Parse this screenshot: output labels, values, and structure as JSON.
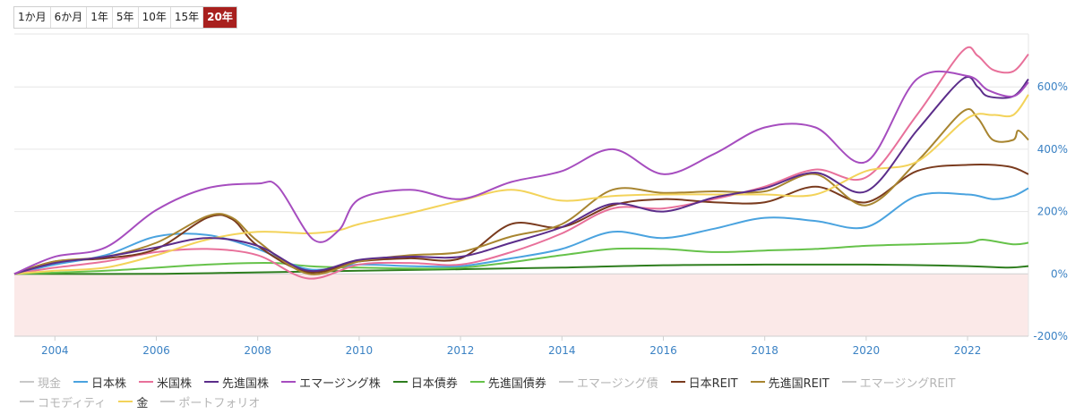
{
  "range_tabs": [
    {
      "label": "1か月",
      "active": false
    },
    {
      "label": "6か月",
      "active": false
    },
    {
      "label": "1年",
      "active": false
    },
    {
      "label": "5年",
      "active": false
    },
    {
      "label": "10年",
      "active": false
    },
    {
      "label": "15年",
      "active": false
    },
    {
      "label": "20年",
      "active": true
    }
  ],
  "colors": {
    "tick": "#3b82c4",
    "negative_band": "#fbe9e8",
    "grid": "#e6e6e6",
    "hidden": "#c8c8c8"
  },
  "chart_data": {
    "type": "line",
    "xlim": [
      2003.2,
      2023.2
    ],
    "ylim": [
      -200,
      770
    ],
    "x_ticks": [
      2004,
      2006,
      2008,
      2010,
      2012,
      2014,
      2016,
      2018,
      2020,
      2022
    ],
    "x_tick_labels": [
      "2004",
      "2006",
      "2008",
      "2010",
      "2012",
      "2014",
      "2016",
      "2018",
      "2020",
      "2022"
    ],
    "y_ticks": [
      600,
      400,
      200,
      0,
      -200
    ],
    "y_tick_labels": [
      "600%",
      "400%",
      "200%",
      "0%",
      "-200%"
    ],
    "grid": true,
    "negative_shading": true,
    "legend_position": "bottom",
    "series": [
      {
        "name": "現金",
        "color": "#c8c8c8",
        "visible": false,
        "points": []
      },
      {
        "name": "日本株",
        "color": "#4aa3df",
        "visible": true,
        "points": [
          [
            2003.2,
            0
          ],
          [
            2004,
            30
          ],
          [
            2005,
            60
          ],
          [
            2006,
            120
          ],
          [
            2007,
            125
          ],
          [
            2008,
            80
          ],
          [
            2009,
            15
          ],
          [
            2010,
            30
          ],
          [
            2011,
            25
          ],
          [
            2012,
            25
          ],
          [
            2013,
            50
          ],
          [
            2014,
            80
          ],
          [
            2015,
            135
          ],
          [
            2016,
            115
          ],
          [
            2017,
            145
          ],
          [
            2018,
            180
          ],
          [
            2019,
            170
          ],
          [
            2020,
            150
          ],
          [
            2021,
            250
          ],
          [
            2022,
            255
          ],
          [
            2022.5,
            240
          ],
          [
            2022.9,
            250
          ],
          [
            2023.2,
            275
          ]
        ]
      },
      {
        "name": "米国株",
        "color": "#e8709a",
        "visible": true,
        "points": [
          [
            2003.2,
            0
          ],
          [
            2004,
            20
          ],
          [
            2005,
            40
          ],
          [
            2006,
            70
          ],
          [
            2007,
            80
          ],
          [
            2008,
            60
          ],
          [
            2009,
            -15
          ],
          [
            2010,
            30
          ],
          [
            2011,
            35
          ],
          [
            2012,
            30
          ],
          [
            2013,
            70
          ],
          [
            2014,
            130
          ],
          [
            2015,
            210
          ],
          [
            2016,
            210
          ],
          [
            2017,
            240
          ],
          [
            2018,
            280
          ],
          [
            2019,
            335
          ],
          [
            2020,
            310
          ],
          [
            2021,
            510
          ],
          [
            2021.9,
            715
          ],
          [
            2022.2,
            700
          ],
          [
            2022.5,
            655
          ],
          [
            2022.9,
            650
          ],
          [
            2023.2,
            705
          ]
        ]
      },
      {
        "name": "先進国株",
        "color": "#5b2d8a",
        "visible": true,
        "points": [
          [
            2003.2,
            0
          ],
          [
            2004,
            35
          ],
          [
            2005,
            55
          ],
          [
            2006,
            85
          ],
          [
            2007,
            115
          ],
          [
            2008,
            90
          ],
          [
            2009,
            10
          ],
          [
            2010,
            45
          ],
          [
            2011,
            55
          ],
          [
            2012,
            55
          ],
          [
            2013,
            100
          ],
          [
            2014,
            150
          ],
          [
            2015,
            225
          ],
          [
            2016,
            200
          ],
          [
            2017,
            245
          ],
          [
            2018,
            275
          ],
          [
            2019,
            325
          ],
          [
            2020,
            265
          ],
          [
            2021,
            460
          ],
          [
            2021.9,
            625
          ],
          [
            2022.2,
            600
          ],
          [
            2022.4,
            570
          ],
          [
            2022.9,
            570
          ],
          [
            2023.2,
            625
          ]
        ]
      },
      {
        "name": "エマージング株",
        "color": "#a64dbf",
        "visible": true,
        "points": [
          [
            2003.2,
            0
          ],
          [
            2004,
            55
          ],
          [
            2005,
            85
          ],
          [
            2006,
            205
          ],
          [
            2007,
            275
          ],
          [
            2008,
            290
          ],
          [
            2008.4,
            280
          ],
          [
            2009.1,
            110
          ],
          [
            2009.6,
            140
          ],
          [
            2010,
            240
          ],
          [
            2011,
            270
          ],
          [
            2012,
            240
          ],
          [
            2013,
            295
          ],
          [
            2014,
            330
          ],
          [
            2015,
            400
          ],
          [
            2016,
            320
          ],
          [
            2017,
            385
          ],
          [
            2018,
            470
          ],
          [
            2019,
            470
          ],
          [
            2020,
            360
          ],
          [
            2021,
            625
          ],
          [
            2022,
            635
          ],
          [
            2022.4,
            590
          ],
          [
            2022.9,
            570
          ],
          [
            2023.2,
            615
          ]
        ]
      },
      {
        "name": "日本債券",
        "color": "#2e7d1e",
        "visible": true,
        "points": [
          [
            2003.2,
            0
          ],
          [
            2006,
            0
          ],
          [
            2008,
            5
          ],
          [
            2010,
            10
          ],
          [
            2012,
            15
          ],
          [
            2014,
            20
          ],
          [
            2016,
            28
          ],
          [
            2018,
            30
          ],
          [
            2020,
            30
          ],
          [
            2022,
            25
          ],
          [
            2022.8,
            20
          ],
          [
            2023.2,
            25
          ]
        ]
      },
      {
        "name": "先進国債券",
        "color": "#66c24a",
        "visible": true,
        "points": [
          [
            2003.2,
            0
          ],
          [
            2005,
            10
          ],
          [
            2007,
            30
          ],
          [
            2008.3,
            35
          ],
          [
            2009,
            25
          ],
          [
            2010,
            20
          ],
          [
            2012,
            20
          ],
          [
            2014,
            60
          ],
          [
            2015,
            80
          ],
          [
            2016,
            80
          ],
          [
            2017,
            70
          ],
          [
            2018,
            75
          ],
          [
            2019,
            80
          ],
          [
            2020,
            90
          ],
          [
            2021,
            95
          ],
          [
            2022,
            100
          ],
          [
            2022.3,
            110
          ],
          [
            2022.9,
            95
          ],
          [
            2023.2,
            100
          ]
        ]
      },
      {
        "name": "エマージング債",
        "color": "#c8c8c8",
        "visible": false,
        "points": []
      },
      {
        "name": "日本REIT",
        "color": "#7a3b1e",
        "visible": true,
        "points": [
          [
            2003.2,
            0
          ],
          [
            2004,
            40
          ],
          [
            2005,
            50
          ],
          [
            2006,
            80
          ],
          [
            2007,
            180
          ],
          [
            2007.5,
            175
          ],
          [
            2008,
            90
          ],
          [
            2009,
            5
          ],
          [
            2010,
            40
          ],
          [
            2011,
            50
          ],
          [
            2012,
            50
          ],
          [
            2013,
            160
          ],
          [
            2014,
            150
          ],
          [
            2015,
            220
          ],
          [
            2016,
            240
          ],
          [
            2017,
            230
          ],
          [
            2018,
            230
          ],
          [
            2019,
            280
          ],
          [
            2020,
            230
          ],
          [
            2021,
            330
          ],
          [
            2022,
            350
          ],
          [
            2022.8,
            345
          ],
          [
            2023.2,
            320
          ]
        ]
      },
      {
        "name": "先進国REIT",
        "color": "#a88530",
        "visible": true,
        "points": [
          [
            2003.2,
            0
          ],
          [
            2004,
            40
          ],
          [
            2005,
            55
          ],
          [
            2006,
            100
          ],
          [
            2007,
            185
          ],
          [
            2007.5,
            180
          ],
          [
            2008,
            105
          ],
          [
            2009,
            0
          ],
          [
            2010,
            40
          ],
          [
            2011,
            60
          ],
          [
            2012,
            70
          ],
          [
            2013,
            120
          ],
          [
            2014,
            160
          ],
          [
            2015,
            270
          ],
          [
            2016,
            260
          ],
          [
            2017,
            265
          ],
          [
            2018,
            265
          ],
          [
            2019,
            320
          ],
          [
            2020,
            220
          ],
          [
            2021,
            360
          ],
          [
            2021.9,
            520
          ],
          [
            2022.2,
            500
          ],
          [
            2022.5,
            430
          ],
          [
            2022.9,
            430
          ],
          [
            2023,
            460
          ],
          [
            2023.2,
            430
          ]
        ]
      },
      {
        "name": "エマージングREIT",
        "color": "#c8c8c8",
        "visible": false,
        "points": []
      },
      {
        "name": "コモディティ",
        "color": "#c8c8c8",
        "visible": false,
        "points": []
      },
      {
        "name": "金",
        "color": "#f3d35a",
        "visible": true,
        "points": [
          [
            2003.2,
            0
          ],
          [
            2004,
            10
          ],
          [
            2005,
            20
          ],
          [
            2006,
            60
          ],
          [
            2007,
            110
          ],
          [
            2008,
            135
          ],
          [
            2009,
            130
          ],
          [
            2009.6,
            140
          ],
          [
            2010,
            160
          ],
          [
            2011,
            195
          ],
          [
            2012,
            235
          ],
          [
            2013,
            270
          ],
          [
            2014,
            235
          ],
          [
            2015,
            250
          ],
          [
            2016,
            255
          ],
          [
            2017,
            255
          ],
          [
            2018,
            255
          ],
          [
            2019,
            255
          ],
          [
            2020,
            330
          ],
          [
            2021,
            360
          ],
          [
            2022,
            500
          ],
          [
            2022.5,
            510
          ],
          [
            2022.9,
            510
          ],
          [
            2023.2,
            575
          ]
        ]
      },
      {
        "name": "ポートフォリオ",
        "color": "#c8c8c8",
        "visible": false,
        "points": []
      }
    ]
  }
}
